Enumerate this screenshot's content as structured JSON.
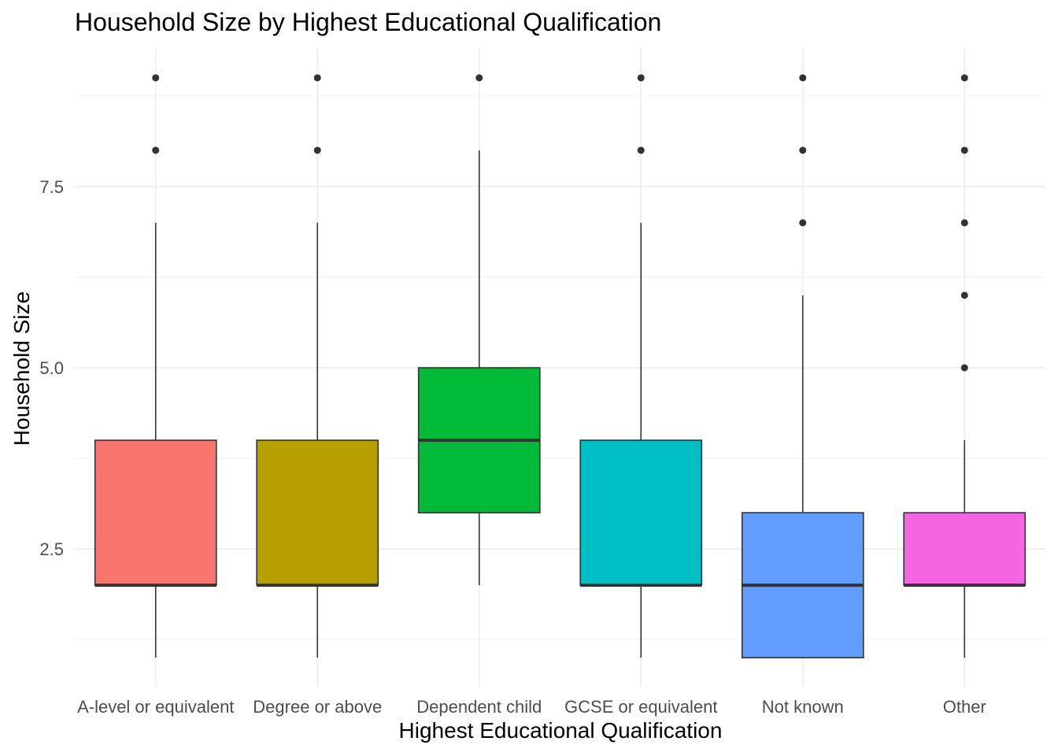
{
  "chart_data": {
    "type": "boxplot",
    "title": "Household Size by Highest Educational Qualification",
    "xlabel": "Highest Educational Qualification",
    "ylabel": "Household Size",
    "ylim": [
      0.6,
      9.4
    ],
    "y_ticks": [
      2.5,
      5.0,
      7.5
    ],
    "y_tick_labels": [
      "2.5",
      "5.0",
      "7.5"
    ],
    "grid": true,
    "legend": "none",
    "categories": [
      "A-level or equivalent",
      "Degree or above",
      "Dependent child",
      "GCSE or equivalent",
      "Not known",
      "Other"
    ],
    "boxes": [
      {
        "category": "A-level or equivalent",
        "color": "#F8766D",
        "lower_whisker": 1,
        "q1": 2,
        "median": 2,
        "q3": 4,
        "upper_whisker": 7,
        "outliers": [
          8,
          9
        ]
      },
      {
        "category": "Degree or above",
        "color": "#B79F00",
        "lower_whisker": 1,
        "q1": 2,
        "median": 2,
        "q3": 4,
        "upper_whisker": 7,
        "outliers": [
          8,
          9
        ]
      },
      {
        "category": "Dependent child",
        "color": "#00BA38",
        "lower_whisker": 2,
        "q1": 3,
        "median": 4,
        "q3": 5,
        "upper_whisker": 8,
        "outliers": [
          9
        ]
      },
      {
        "category": "GCSE or equivalent",
        "color": "#00BFC4",
        "lower_whisker": 1,
        "q1": 2,
        "median": 2,
        "q3": 4,
        "upper_whisker": 7,
        "outliers": [
          8,
          9
        ]
      },
      {
        "category": "Not known",
        "color": "#619CFF",
        "lower_whisker": 1,
        "q1": 1,
        "median": 2,
        "q3": 3,
        "upper_whisker": 6,
        "outliers": [
          7,
          8,
          9
        ]
      },
      {
        "category": "Other",
        "color": "#F564E3",
        "lower_whisker": 1,
        "q1": 2,
        "median": 2,
        "q3": 3,
        "upper_whisker": 4,
        "outliers": [
          5,
          6,
          7,
          8,
          9
        ]
      }
    ]
  }
}
